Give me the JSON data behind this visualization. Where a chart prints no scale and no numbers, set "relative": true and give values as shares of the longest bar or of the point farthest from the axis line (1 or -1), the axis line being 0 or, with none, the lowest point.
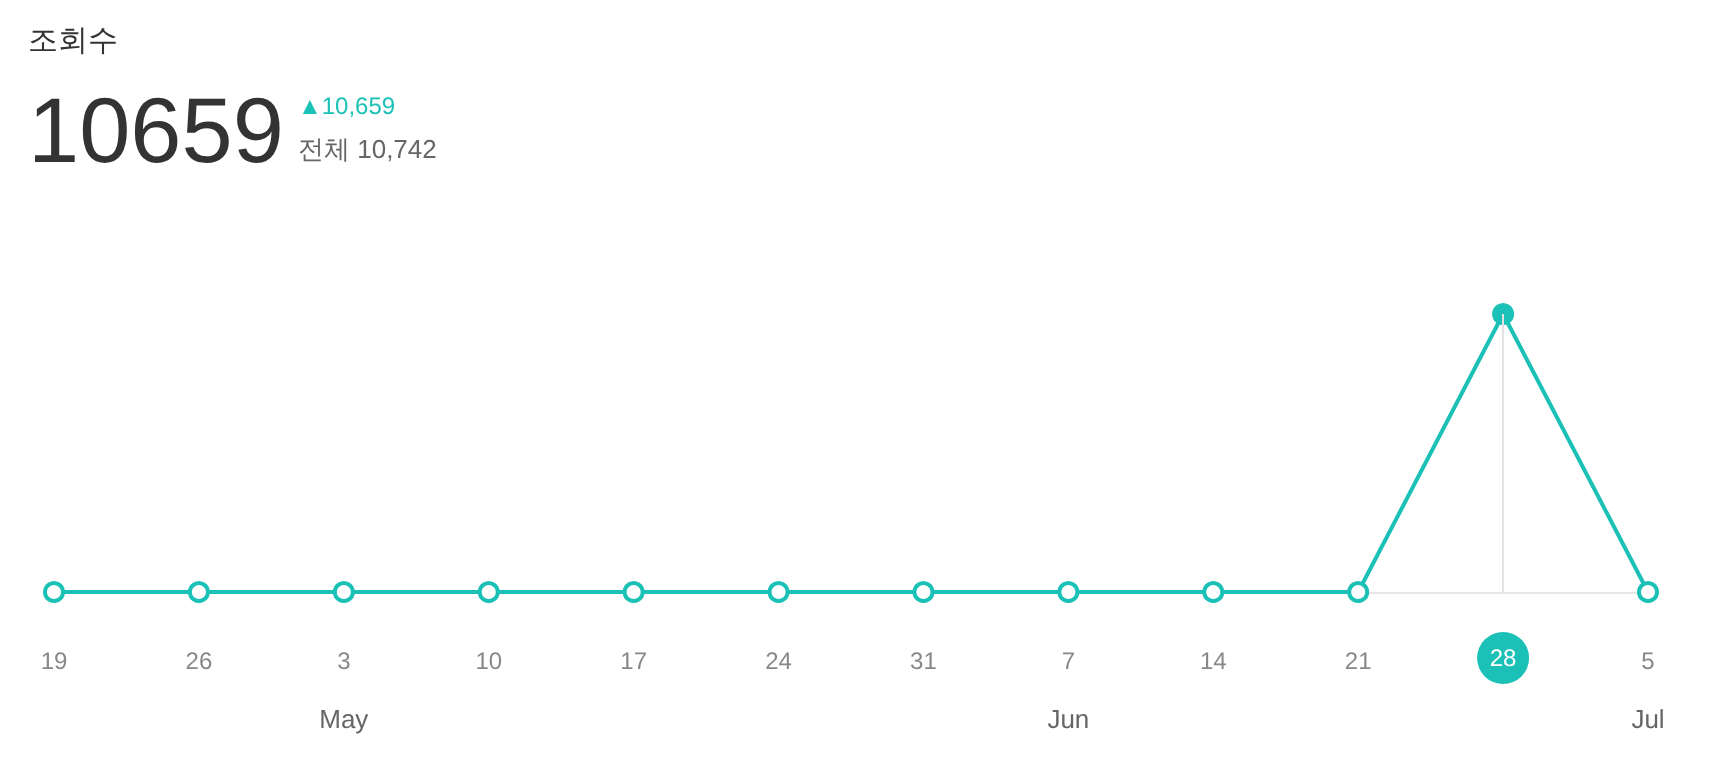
{
  "chart_data": {
    "type": "line",
    "title": "조회수",
    "relative": true,
    "marker": "circle",
    "line_style": "solid",
    "grid": false,
    "categories": [
      "19",
      "26",
      "3\nMay",
      "10",
      "17",
      "24",
      "31",
      "7\nJun",
      "14",
      "21",
      "28",
      "5\nJul"
    ],
    "series": [
      {
        "color": "#1bc1b6",
        "values": [
          0,
          0,
          0,
          0,
          0,
          0,
          0,
          0,
          0,
          0,
          1,
          0
        ]
      }
    ],
    "ref_lines": [
      {
        "axis": "x",
        "value": "28",
        "color": "#e3e3e3"
      }
    ],
    "annotations": [
      "10659",
      "▲10,659",
      "전체 10,742"
    ]
  }
}
